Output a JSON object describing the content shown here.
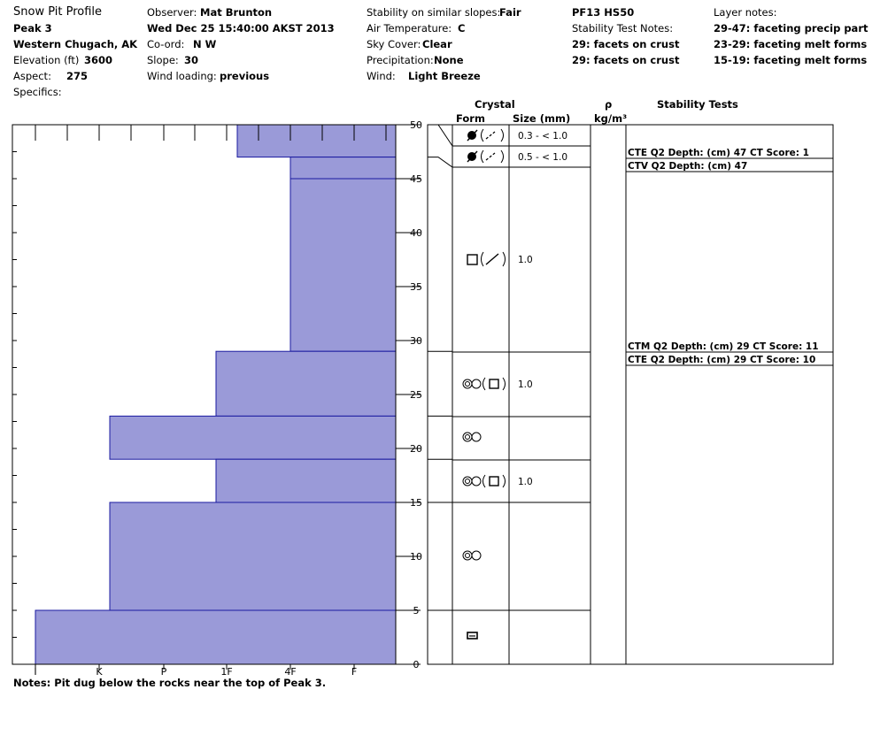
{
  "header": {
    "title": "Snow Pit Profile",
    "location": "Peak 3",
    "region": "Western Chugach, AK",
    "elevation_label": "Elevation (ft)",
    "elevation": "3600",
    "aspect_label": "Aspect:",
    "aspect": "275",
    "specifics_label": "Specifics:",
    "observer_label": "Observer:",
    "observer": "Mat Brunton",
    "datetime": "Wed Dec 25 15:40:00 AKST 2013",
    "coord_label": "Co-ord:",
    "coord": "N  W",
    "slope_label": "Slope:",
    "slope": "30",
    "wind_loading_label": "Wind loading:",
    "wind_loading": "previous",
    "stability_label": "Stability on similar slopes:",
    "stability": "Fair",
    "air_temp_label": "Air Temperature:",
    "air_temp": "C",
    "sky_label": "Sky Cover:",
    "sky": "Clear",
    "precip_label": "Precipitation:",
    "precip": "None",
    "wind_label": "Wind:",
    "wind": "Light Breeze",
    "pit_code": "PF13 HS50",
    "stability_notes_label": "Stability Test Notes:",
    "stability_notes": [
      "29: facets on crust",
      "29: facets on crust"
    ],
    "layer_notes_label": "Layer notes:",
    "layer_notes": [
      "29-47: faceting precip part",
      "23-29: faceting melt forms",
      "15-19: faceting melt forms"
    ]
  },
  "columns": {
    "crystal": "Crystal",
    "form": "Form",
    "size": "Size (mm)",
    "density_symbol": "ρ",
    "density_unit": "kg/m³",
    "stability_tests": "Stability Tests"
  },
  "notes": "Notes:  Pit dug below the rocks near the top of Peak 3.",
  "chart_data": {
    "type": "bar",
    "title": "",
    "ylabel": "",
    "ylim": [
      0,
      50
    ],
    "yticks": [
      0,
      5,
      10,
      15,
      20,
      25,
      30,
      35,
      40,
      45,
      50
    ],
    "hardness_scale": [
      "I",
      "K",
      "P",
      "1F",
      "4F",
      "F"
    ],
    "layers": [
      {
        "bottom": 47,
        "top": 50,
        "hardness": "1F+",
        "form": "precip-particle-faceted",
        "size": "0.3 - < 1.0"
      },
      {
        "bottom": 45,
        "top": 47,
        "hardness": "4F",
        "form": "precip-particle-faceted",
        "size": "0.5 - < 1.0"
      },
      {
        "bottom": 29,
        "top": 45,
        "hardness": "4F",
        "form": "faceted-rounded",
        "size": "1.0"
      },
      {
        "bottom": 23,
        "top": 29,
        "hardness": "1F-",
        "form": "depth-hoar-faceted",
        "size": "1.0"
      },
      {
        "bottom": 19,
        "top": 23,
        "hardness": "K+",
        "form": "depth-hoar",
        "size": ""
      },
      {
        "bottom": 15,
        "top": 19,
        "hardness": "1F-",
        "form": "depth-hoar-faceted",
        "size": "1.0"
      },
      {
        "bottom": 5,
        "top": 15,
        "hardness": "K+",
        "form": "depth-hoar",
        "size": ""
      },
      {
        "bottom": 0,
        "top": 5,
        "hardness": "I",
        "form": "melt-freeze-crust",
        "size": ""
      }
    ],
    "stability_tests": [
      {
        "depth": 47,
        "text": "CTE Q2 Depth: (cm) 47 CT Score: 1"
      },
      {
        "depth": 47,
        "text": "CTV Q2 Depth: (cm) 47"
      },
      {
        "depth": 29,
        "text": "CTM Q2 Depth: (cm) 29 CT Score: 11"
      },
      {
        "depth": 29,
        "text": "CTE Q2 Depth: (cm) 29 CT Score: 10"
      }
    ],
    "colors": {
      "fill": "#9a9ad8",
      "edge": "#1a1aa0"
    }
  }
}
